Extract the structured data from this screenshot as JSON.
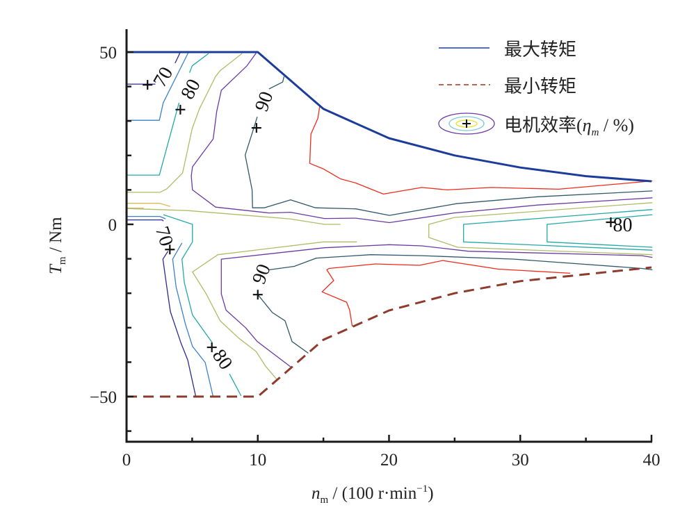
{
  "chart_data": {
    "type": "contour",
    "title": "",
    "xlabel": {
      "main": "n",
      "sub": "m",
      "rest": " / (100 r·min",
      "sup": "−1",
      "close": ")"
    },
    "ylabel": {
      "main": "T",
      "sub": "m",
      "rest": " / Nm"
    },
    "xlim": [
      0,
      40
    ],
    "ylim": [
      -63.1,
      56.65
    ],
    "xticks": [
      0,
      10,
      20,
      30,
      40
    ],
    "xtick_labels": [
      "0",
      "10",
      "20",
      "30",
      "40"
    ],
    "yticks": [
      50,
      0,
      -50
    ],
    "ytick_labels": [
      "50",
      "0",
      "−50"
    ],
    "grid": false,
    "legend_position": "top-right",
    "legend": [
      {
        "label": "最大转矩",
        "kind": "line",
        "color": "#1c3c9c"
      },
      {
        "label": "最小转矩",
        "kind": "dashed",
        "color": "#a0301e"
      },
      {
        "label": "电机效率(",
        "eta": "η",
        "eta_sub": "m",
        "tail": " / %)",
        "kind": "contour"
      }
    ],
    "max_torque": {
      "name": "最大转矩",
      "color": "#1c3c9c",
      "points": [
        [
          0,
          50
        ],
        [
          10,
          50
        ],
        [
          15,
          33.5
        ],
        [
          20,
          25
        ],
        [
          25,
          20
        ],
        [
          30,
          16.5
        ],
        [
          35,
          14
        ],
        [
          40,
          12.5
        ]
      ]
    },
    "min_torque": {
      "name": "最小转矩",
      "color": "#8e3a2c",
      "points": [
        [
          0,
          -50
        ],
        [
          10,
          -50
        ],
        [
          15,
          -33.5
        ],
        [
          20,
          -25
        ],
        [
          25,
          -20
        ],
        [
          30,
          -16.5
        ],
        [
          35,
          -14.5
        ],
        [
          40,
          -12.5
        ]
      ]
    },
    "contours": [
      {
        "level": 70,
        "color": "#2e2a8c",
        "points": [
          [
            0,
            40.7
          ],
          [
            2.2,
            40.7
          ]
        ]
      },
      {
        "level": 70,
        "color": "#2e2a8c",
        "points": [
          [
            3.7,
            46.8
          ],
          [
            4.1,
            50
          ]
        ]
      },
      {
        "level": 70,
        "color": "#2e2a8c",
        "points": [
          [
            0,
            1.3
          ],
          [
            2.72,
            1.3
          ],
          [
            2.81,
            0.95
          ]
        ]
      },
      {
        "level": 70,
        "color": "#2e2a8c",
        "points": [
          [
            3.16,
            -7.8
          ],
          [
            2.77,
            -10.1
          ],
          [
            3.07,
            -18.2
          ],
          [
            3.34,
            -25.3
          ],
          [
            4.13,
            -34.3
          ],
          [
            4.66,
            -39.4
          ],
          [
            5.28,
            -50.1
          ]
        ]
      },
      {
        "level": 75,
        "color": "#3a7fd0",
        "points": [
          [
            0,
            30.2
          ],
          [
            2.5,
            30.2
          ],
          [
            2.8,
            35.3
          ],
          [
            4.7,
            49.8
          ]
        ]
      },
      {
        "level": 75,
        "color": "#3a7fd0",
        "points": [
          [
            0,
            2.3
          ],
          [
            2.54,
            2.3
          ],
          [
            2.98,
            1.6
          ]
        ]
      },
      {
        "level": 75,
        "color": "#3a7fd0",
        "points": [
          [
            4.22,
            -5.4
          ],
          [
            3.51,
            -10.1
          ],
          [
            3.78,
            -18.2
          ],
          [
            4.49,
            -29.0
          ],
          [
            5.02,
            -35.4
          ],
          [
            5.99,
            -40.1
          ],
          [
            6.6,
            -50.1
          ]
        ]
      },
      {
        "level": 80,
        "color": "#22a8a8",
        "points": [
          [
            0,
            14.3
          ],
          [
            2.5,
            14.3
          ],
          [
            4.0,
            35.3
          ]
        ]
      },
      {
        "level": 80,
        "color": "#22a8a8",
        "points": [
          [
            4.8,
            44
          ],
          [
            5.0,
            46
          ],
          [
            6.25,
            49.6
          ]
        ]
      },
      {
        "level": 80,
        "color": "#22a8a8",
        "points": [
          [
            2.81,
            2.8
          ],
          [
            5.02,
            0
          ],
          [
            5.02,
            -5.1
          ],
          [
            4.22,
            -10.1
          ],
          [
            4.4,
            -16.9
          ],
          [
            5.02,
            -26.3
          ],
          [
            6.52,
            -34.3
          ]
        ]
      },
      {
        "level": 80,
        "color": "#22a8a8",
        "points": [
          [
            7.84,
            -43.4
          ],
          [
            8.73,
            -49.8
          ]
        ]
      },
      {
        "level": 80,
        "color": "#22a8a8",
        "points": [
          [
            40.07,
            4.3
          ],
          [
            25.68,
            0
          ],
          [
            25.68,
            -5.1
          ],
          [
            40.07,
            -7.5
          ]
        ]
      },
      {
        "level": 82,
        "color": "#22a8a8",
        "points": [
          [
            40.07,
            2.8
          ],
          [
            32.04,
            0
          ],
          [
            32.04,
            -5.1
          ],
          [
            40.07,
            -6.65
          ]
        ]
      },
      {
        "level": 65,
        "color": "#e0b85a",
        "points": [
          [
            0,
            6.1
          ],
          [
            2.54,
            6.1
          ],
          [
            3.34,
            5.2
          ]
        ]
      },
      {
        "level": 65,
        "color": "#e0b85a",
        "points": [
          [
            0,
            4.7
          ],
          [
            1.3,
            4.7
          ]
        ]
      },
      {
        "level": 85,
        "color": "#b0bb66",
        "points": [
          [
            0,
            9.3
          ],
          [
            2.54,
            9.3
          ],
          [
            3.07,
            10.3
          ],
          [
            4.27,
            14.9
          ],
          [
            5.0,
            27.8
          ],
          [
            5.55,
            33.5
          ],
          [
            6.78,
            42.9
          ],
          [
            7.13,
            44.6
          ],
          [
            8.8,
            49.6
          ]
        ]
      },
      {
        "level": 85,
        "color": "#b0bb66",
        "points": [
          [
            0,
            4.6
          ],
          [
            4.66,
            4.0
          ],
          [
            12.43,
            1.6
          ],
          [
            15.08,
            0
          ],
          [
            16.3,
            0
          ]
        ]
      },
      {
        "level": 85,
        "color": "#b0bb66",
        "points": [
          [
            17.55,
            -5.1
          ],
          [
            14.99,
            -5.1
          ],
          [
            6.96,
            -8.8
          ],
          [
            5.02,
            -13.8
          ],
          [
            6.07,
            -20.2
          ],
          [
            7.13,
            -28.0
          ],
          [
            8.54,
            -33.0
          ],
          [
            9.87,
            -36.9
          ],
          [
            10.58,
            -41.1
          ],
          [
            11.47,
            -45.1
          ]
        ]
      },
      {
        "level": 85,
        "color": "#b0bb66",
        "points": [
          [
            40.07,
            6.3
          ],
          [
            24.97,
            2.0
          ],
          [
            23.03,
            0
          ],
          [
            23.03,
            -3.8
          ],
          [
            25.23,
            -6.65
          ],
          [
            40.07,
            -8.8
          ]
        ]
      },
      {
        "level": 88,
        "color": "#6a3aa2",
        "points": [
          [
            9.87,
            49.7
          ],
          [
            9.17,
            46
          ],
          [
            7.22,
            38.9
          ],
          [
            6.87,
            32.8
          ],
          [
            6.6,
            24.8
          ],
          [
            5.02,
            16.7
          ],
          [
            4.93,
            14.0
          ],
          [
            5.02,
            10.0
          ],
          [
            6.78,
            5.0
          ],
          [
            10.85,
            3.3
          ],
          [
            12.5,
            3.5
          ],
          [
            15.08,
            1.7
          ],
          [
            17.47,
            1.8
          ],
          [
            20.03,
            0.5
          ],
          [
            24.97,
            3.3
          ],
          [
            31.33,
            5.6
          ],
          [
            40.07,
            7.7
          ]
        ]
      },
      {
        "level": 88,
        "color": "#6a3aa2",
        "points": [
          [
            40.07,
            -9.6
          ],
          [
            39.27,
            -9.1
          ],
          [
            31.33,
            -8.3
          ],
          [
            26.03,
            -7.8
          ],
          [
            22.5,
            -6.25
          ],
          [
            20.03,
            -5.9
          ],
          [
            15.08,
            -6.8
          ],
          [
            7.22,
            -10.1
          ],
          [
            7.22,
            -20.2
          ],
          [
            7.58,
            -24.9
          ],
          [
            9.07,
            -30.0
          ],
          [
            9.96,
            -34.0
          ],
          [
            12.52,
            -41.4
          ]
        ]
      },
      {
        "level": 90,
        "color": "#2e5868",
        "points": [
          [
            12.0,
            42.9
          ],
          [
            11.9,
            41.3
          ],
          [
            10.85,
            39.3
          ]
        ]
      },
      {
        "level": 90,
        "color": "#2e5868",
        "points": [
          [
            9.96,
            31.2
          ],
          [
            9.6,
            26.8
          ],
          [
            9.04,
            20.1
          ],
          [
            9.57,
            10.0
          ],
          [
            9.6,
            4.8
          ],
          [
            10.5,
            4.8
          ],
          [
            12.5,
            7.1
          ],
          [
            14.4,
            4.8
          ],
          [
            17.47,
            4.5
          ],
          [
            20.03,
            2.6
          ],
          [
            25.15,
            6.0
          ],
          [
            31.33,
            8.0
          ],
          [
            40.07,
            9.7
          ]
        ]
      },
      {
        "level": 90,
        "color": "#2e5868",
        "points": [
          [
            40.07,
            -13.2
          ],
          [
            39.27,
            -12.8
          ],
          [
            29.56,
            -10.1
          ],
          [
            22.5,
            -9.1
          ],
          [
            18.61,
            -8.8
          ],
          [
            14.46,
            -9.8
          ],
          [
            12.78,
            -12.2
          ],
          [
            10.85,
            -13.2
          ]
        ]
      },
      {
        "level": 90,
        "color": "#2e5868",
        "points": [
          [
            9.96,
            -20.2
          ],
          [
            11.11,
            -25.6
          ],
          [
            12.08,
            -28.0
          ],
          [
            12.61,
            -34.0
          ],
          [
            13.85,
            -37.4
          ]
        ]
      },
      {
        "level": 92,
        "color": "#ee2a1a",
        "points": [
          [
            14.73,
            34.5
          ],
          [
            14.58,
            30.8
          ],
          [
            14.05,
            26.2
          ],
          [
            13.96,
            17.7
          ],
          [
            14.99,
            16.1
          ],
          [
            16.3,
            13.2
          ],
          [
            17.47,
            12.0
          ],
          [
            18.97,
            9.7
          ],
          [
            19.57,
            8.8
          ],
          [
            22.5,
            10.7
          ],
          [
            24.44,
            10.0
          ],
          [
            27.8,
            10.7
          ],
          [
            32.92,
            10.2
          ],
          [
            40.07,
            12.6
          ]
        ]
      },
      {
        "level": 92,
        "color": "#ee2a1a",
        "points": [
          [
            33.8,
            -14.2
          ],
          [
            28.33,
            -13.0
          ],
          [
            24.09,
            -10.5
          ],
          [
            22.32,
            -11.9
          ],
          [
            18.97,
            -11.5
          ],
          [
            15.43,
            -12.8
          ],
          [
            15.26,
            -13.2
          ],
          [
            15.79,
            -16.3
          ],
          [
            14.9,
            -19.6
          ],
          [
            16.77,
            -22.6
          ],
          [
            17.0,
            -24.9
          ],
          [
            17.2,
            -29.6
          ]
        ]
      }
    ],
    "contour_labels": [
      {
        "text": "70",
        "x": 2.9,
        "y": 42.5,
        "plus_x": 1.6,
        "plus_y": 40.5
      },
      {
        "text": "80",
        "x": 5.0,
        "y": 39.0,
        "plus_x": 4.1,
        "plus_y": 33.3
      },
      {
        "text": "90",
        "x": 10.6,
        "y": 35.5,
        "plus_x": 9.9,
        "plus_y": 28.0
      },
      {
        "text": "70",
        "x": 2.75,
        "y": -3.6,
        "plus_x": 3.3,
        "plus_y": -7.3
      },
      {
        "text": "90",
        "x": 10.4,
        "y": -14.6,
        "plus_x": 10.0,
        "plus_y": -20.4
      },
      {
        "text": "80",
        "x": 7.2,
        "y": -39.5,
        "plus_x": 6.5,
        "plus_y": -35.7
      },
      {
        "text": "80",
        "x": 37.8,
        "y": -0.7,
        "plus_x": 36.9,
        "plus_y": 0.6
      }
    ]
  }
}
